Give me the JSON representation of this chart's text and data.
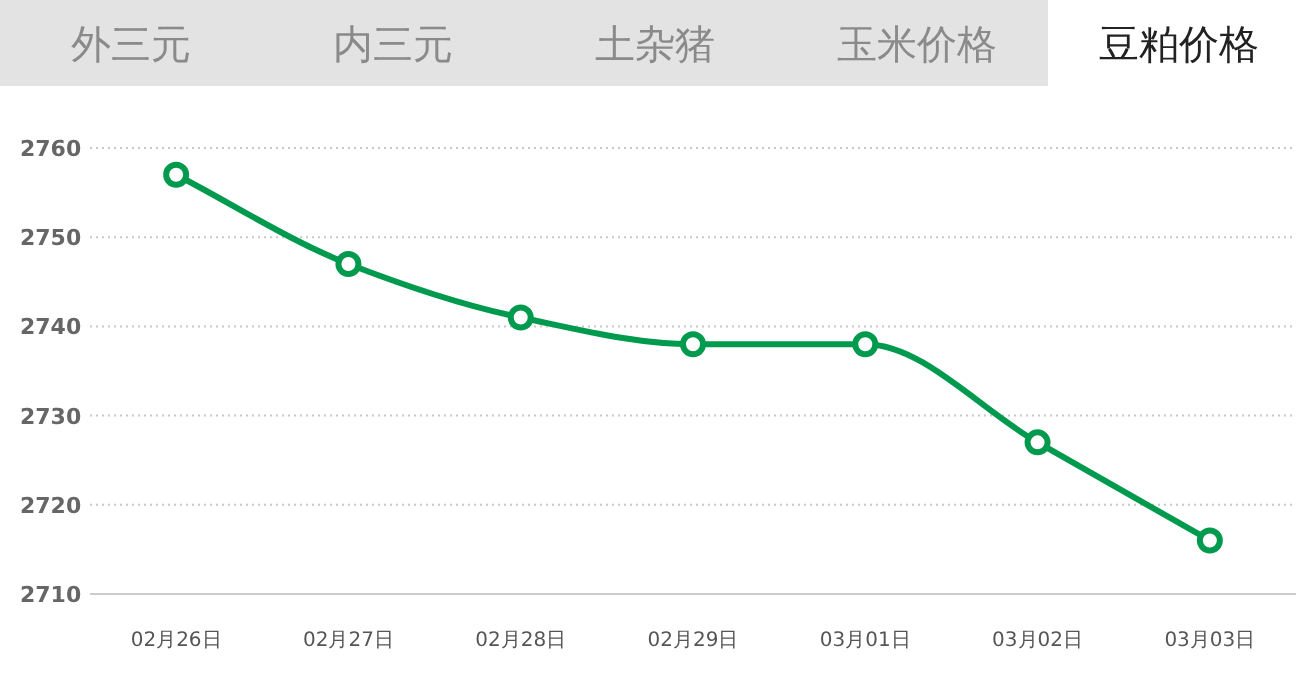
{
  "chart_data": {
    "type": "line",
    "title": "豆粕价格",
    "annotations": [
      "外三元",
      "内三元",
      "土杂猪",
      "玉米价格"
    ],
    "categories": [
      "02月26日",
      "02月27日",
      "02月28日",
      "02月29日",
      "03月01日",
      "03月02日",
      "03月03日"
    ],
    "series": [
      {
        "color": "#009a4e",
        "values": [
          2757,
          2747,
          2741,
          2738,
          2738,
          2727,
          2716
        ]
      }
    ],
    "ylim": [
      2710,
      2760
    ],
    "yticks": [
      2710,
      2720,
      2730,
      2740,
      2750,
      2760
    ],
    "grid": "y",
    "marker": "circle",
    "line_style": "solid"
  }
}
